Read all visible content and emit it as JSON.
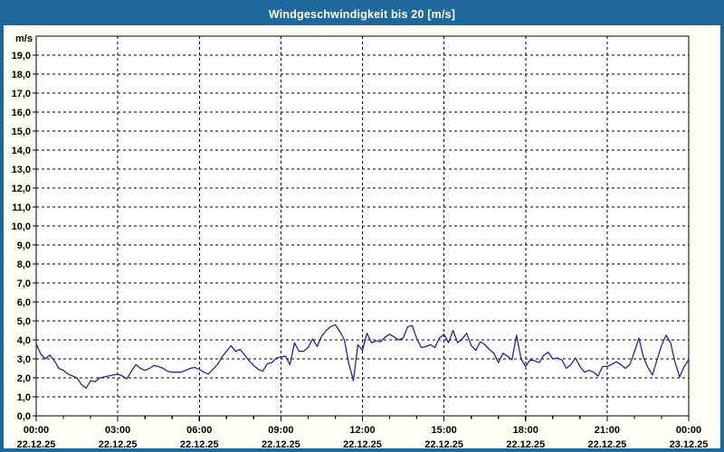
{
  "window": {
    "title": "Windgeschwindigkeit bis 20 [m/s]"
  },
  "colors": {
    "header_blue": "#20689b",
    "series_line": "#2222b4",
    "grid": "#000000",
    "plot_background": "#ffffff",
    "page_background": "#fffef5"
  },
  "chart_data": {
    "type": "line",
    "title": "Windgeschwindigkeit bis 20 [m/s]",
    "unit_label": "m/s",
    "ylim": [
      0,
      20
    ],
    "y_tick_step": 1.0,
    "y_tick_labels": [
      "0,0",
      "1,0",
      "2,0",
      "3,0",
      "4,0",
      "5,0",
      "6,0",
      "7,0",
      "8,0",
      "9,0",
      "10,0",
      "11,0",
      "12,0",
      "13,0",
      "14,0",
      "15,0",
      "16,0",
      "17,0",
      "18,0",
      "19,0"
    ],
    "x_range_hours": [
      0,
      24
    ],
    "x_major_every_hours": 3,
    "x_minor_every_hours": 1,
    "grid": "dashed",
    "legend": "none",
    "x_ticks": [
      {
        "time": "00:00",
        "date": "22.12.25"
      },
      {
        "time": "03:00",
        "date": "22.12.25"
      },
      {
        "time": "06:00",
        "date": "22.12.25"
      },
      {
        "time": "09:00",
        "date": "22.12.25"
      },
      {
        "time": "12:00",
        "date": "22.12.25"
      },
      {
        "time": "15:00",
        "date": "22.12.25"
      },
      {
        "time": "18:00",
        "date": "22.12.25"
      },
      {
        "time": "21:00",
        "date": "22.12.25"
      },
      {
        "time": "00:00",
        "date": "23.12.25"
      }
    ],
    "series": [
      {
        "name": "Windgeschwindigkeit",
        "unit": "m/s",
        "start_time": "00:00",
        "step_minutes": 10,
        "values": [
          3.8,
          3.25,
          3.0,
          3.2,
          2.9,
          2.5,
          2.4,
          2.2,
          2.1,
          2.0,
          1.65,
          1.45,
          1.85,
          1.8,
          2.0,
          2.05,
          2.1,
          2.15,
          2.2,
          2.1,
          1.95,
          2.35,
          2.7,
          2.5,
          2.4,
          2.5,
          2.65,
          2.6,
          2.5,
          2.35,
          2.3,
          2.3,
          2.3,
          2.4,
          2.5,
          2.55,
          2.45,
          2.3,
          2.2,
          2.45,
          2.7,
          3.1,
          3.4,
          3.7,
          3.4,
          3.5,
          3.2,
          2.9,
          2.65,
          2.45,
          2.35,
          2.75,
          2.8,
          3.05,
          3.1,
          3.15,
          2.7,
          3.85,
          3.4,
          3.4,
          3.6,
          4.05,
          3.65,
          4.2,
          4.5,
          4.7,
          4.8,
          4.45,
          4.0,
          2.75,
          1.85,
          3.75,
          3.45,
          4.35,
          3.85,
          3.95,
          3.9,
          4.15,
          4.3,
          4.15,
          4.0,
          4.1,
          4.7,
          4.75,
          4.05,
          3.6,
          3.65,
          3.75,
          3.6,
          4.1,
          4.3,
          3.85,
          4.5,
          3.85,
          4.05,
          4.35,
          3.7,
          3.45,
          3.9,
          3.75,
          3.5,
          3.3,
          2.8,
          3.3,
          3.15,
          2.95,
          4.25,
          3.0,
          2.6,
          2.95,
          2.9,
          2.8,
          3.2,
          3.35,
          3.0,
          3.05,
          2.95,
          2.5,
          2.7,
          3.05,
          2.6,
          2.3,
          2.4,
          2.3,
          2.1,
          2.6,
          2.6,
          2.7,
          2.85,
          2.7,
          2.5,
          2.7,
          3.35,
          4.1,
          3.1,
          2.55,
          2.15,
          2.95,
          3.7,
          4.25,
          3.85,
          2.8,
          2.05,
          2.6,
          2.95
        ]
      }
    ]
  }
}
